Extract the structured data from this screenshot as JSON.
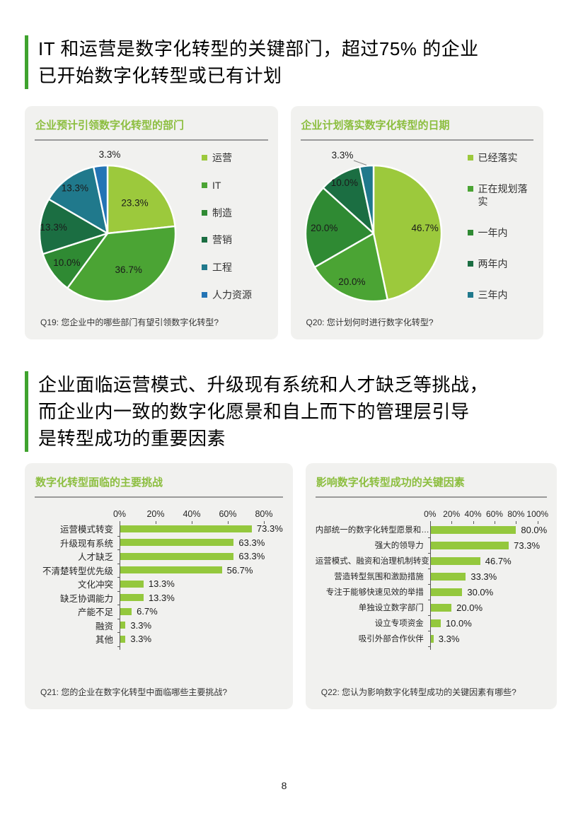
{
  "page": {
    "number": "8"
  },
  "headlines": {
    "h1": {
      "lines": [
        "IT 和运营是数字化转型的关键部门，超过75% 的企业",
        "已开始数字化转型或已有计划"
      ]
    },
    "h2": {
      "lines": [
        "企业面临运营模式、升级现有系统和人才缺乏等挑战，",
        "而企业内一致的数字化愿景和自上而下的管理层引导",
        "是转型成功的重要因素"
      ]
    }
  },
  "colors": {
    "accent_green": "#3FA32E",
    "title_green": "#8CBE3F",
    "bar_green": "#94C83D",
    "panel_bg": "#F1F1EF",
    "axis_gray": "#595959",
    "divider_gray": "#9A9A9A"
  },
  "chart_data": [
    {
      "type": "pie",
      "title": "企业预计引领数字化转型的部门",
      "caption": "Q19: 您企业中的哪些部门有望引领数字化转型?",
      "labels": [
        "运营",
        "IT",
        "制造",
        "营销",
        "工程",
        "人力资源"
      ],
      "values": [
        23.3,
        36.7,
        10.0,
        13.3,
        13.3,
        3.3
      ],
      "value_labels": [
        "23.3%",
        "36.7%",
        "10.0%",
        "13.3%",
        "13.3%",
        "3.3%"
      ],
      "colors": [
        "#9CC93C",
        "#4BA434",
        "#2F8A33",
        "#1B6E42",
        "#20798C",
        "#2374B5"
      ],
      "legend_position": "right"
    },
    {
      "type": "pie",
      "title": "企业计划落实数字化转型的日期",
      "caption": "Q20: 您计划何时进行数字化转型?",
      "labels": [
        "已经落实",
        "正在规划落实",
        "一年内",
        "两年内",
        "三年内"
      ],
      "values": [
        46.7,
        20.0,
        20.0,
        10.0,
        3.3
      ],
      "value_labels": [
        "46.7%",
        "20.0%",
        "20.0%",
        "10.0%",
        "3.3%"
      ],
      "colors": [
        "#9CC93C",
        "#4BA434",
        "#2F8A33",
        "#1B6E42",
        "#20798C"
      ],
      "legend_position": "right"
    },
    {
      "type": "bar",
      "title": "数字化转型面临的主要挑战",
      "caption": "Q21: 您的企业在数字化转型中面临哪些主要挑战?",
      "categories": [
        "运营模式转变",
        "升级现有系统",
        "人才缺乏",
        "不清楚转型优先级",
        "文化冲突",
        "缺乏协调能力",
        "产能不足",
        "融资",
        "其他"
      ],
      "values": [
        73.3,
        63.3,
        63.3,
        56.7,
        13.3,
        13.3,
        6.7,
        3.3,
        3.3
      ],
      "value_labels": [
        "73.3%",
        "63.3%",
        "63.3%",
        "56.7%",
        "13.3%",
        "13.3%",
        "6.7%",
        "3.3%",
        "3.3%"
      ],
      "axis_ticks": [
        "0%",
        "20%",
        "40%",
        "60%",
        "80%"
      ],
      "xlim": [
        0,
        80
      ],
      "color": "#94C83D"
    },
    {
      "type": "bar",
      "title": "影响数字化转型成功的关键因素",
      "caption": "Q22: 您认为影响数字化转型成功的关键因素有哪些?",
      "categories": [
        "内部统一的数字化转型愿景和…",
        "强大的领导力",
        "运营模式、融资和治理机制转变",
        "营造转型氛围和激励措施",
        "专注于能够快速见效的举措",
        "单独设立数字部门",
        "设立专项资金",
        "吸引外部合作伙伴"
      ],
      "values": [
        80.0,
        73.3,
        46.7,
        33.3,
        30.0,
        20.0,
        10.0,
        3.3
      ],
      "value_labels": [
        "80.0%",
        "73.3%",
        "46.7%",
        "33.3%",
        "30.0%",
        "20.0%",
        "10.0%",
        "3.3%"
      ],
      "axis_ticks": [
        "0%",
        "20%",
        "40%",
        "60%",
        "80%",
        "100%"
      ],
      "xlim": [
        0,
        100
      ],
      "color": "#94C83D"
    }
  ]
}
